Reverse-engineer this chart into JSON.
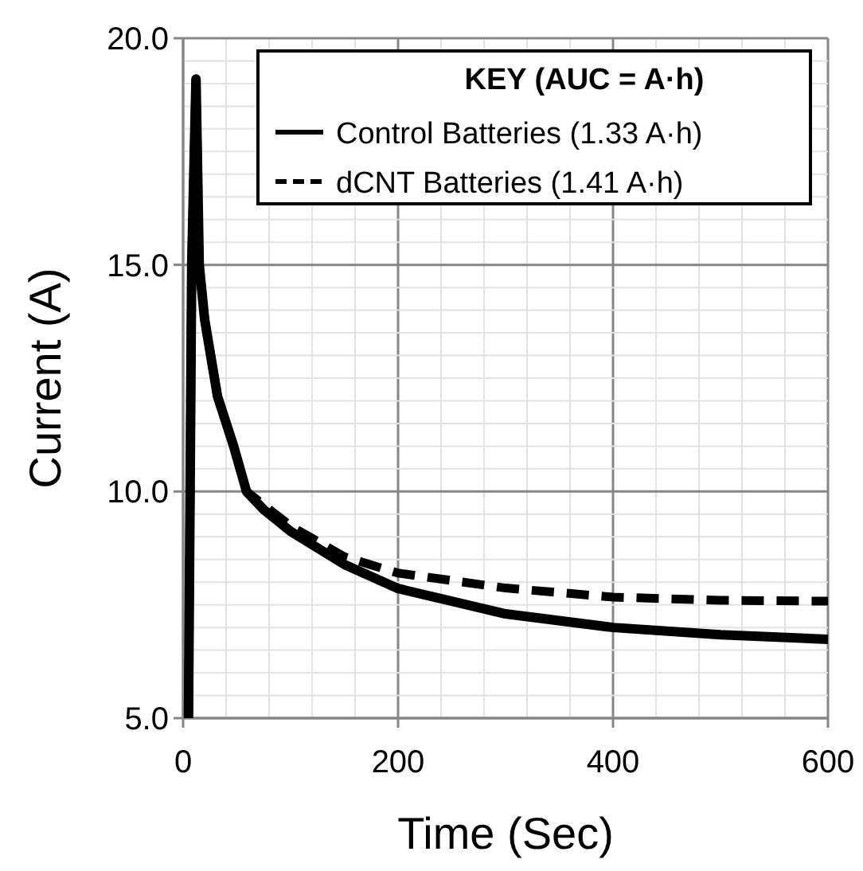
{
  "chart_data": {
    "type": "line",
    "xlabel": "Time (Sec)",
    "ylabel": "Current (A)",
    "legend_title": "KEY (AUC = A·h)",
    "xlim": [
      0,
      600
    ],
    "ylim": [
      5,
      20
    ],
    "xticks": [
      0,
      {
        "value": 40,
        "label": null
      },
      {
        "value": 80,
        "label": null
      },
      {
        "value": 120,
        "label": null
      },
      {
        "value": 160,
        "label": null
      },
      200,
      {
        "value": 240,
        "label": null
      },
      {
        "value": 280,
        "label": null
      },
      {
        "value": 320,
        "label": null
      },
      {
        "value": 360,
        "label": null
      },
      400,
      {
        "value": 440,
        "label": null
      },
      {
        "value": 480,
        "label": null
      },
      {
        "value": 520,
        "label": null
      },
      {
        "value": 560,
        "label": null
      },
      600
    ],
    "yticks": [
      {
        "value": 5,
        "label": "5.0"
      },
      {
        "value": 5.5,
        "label": null
      },
      {
        "value": 6,
        "label": null
      },
      {
        "value": 6.5,
        "label": null
      },
      {
        "value": 7,
        "label": null
      },
      {
        "value": 7.5,
        "label": null
      },
      {
        "value": 8,
        "label": null
      },
      {
        "value": 8.5,
        "label": null
      },
      {
        "value": 9,
        "label": null
      },
      {
        "value": 9.5,
        "label": null
      },
      {
        "value": 10,
        "label": "10.0"
      },
      {
        "value": 10.5,
        "label": null
      },
      {
        "value": 11,
        "label": null
      },
      {
        "value": 11.5,
        "label": null
      },
      {
        "value": 12,
        "label": null
      },
      {
        "value": 12.5,
        "label": null
      },
      {
        "value": 13,
        "label": null
      },
      {
        "value": 13.5,
        "label": null
      },
      {
        "value": 14,
        "label": null
      },
      {
        "value": 14.5,
        "label": null
      },
      {
        "value": 15,
        "label": "15.0"
      },
      {
        "value": 15.5,
        "label": null
      },
      {
        "value": 16,
        "label": null
      },
      {
        "value": 16.5,
        "label": null
      },
      {
        "value": 17,
        "label": null
      },
      {
        "value": 17.5,
        "label": null
      },
      {
        "value": 18,
        "label": null
      },
      {
        "value": 18.5,
        "label": null
      },
      {
        "value": 19,
        "label": null
      },
      {
        "value": 19.5,
        "label": null
      },
      {
        "value": 20,
        "label": "20.0"
      }
    ],
    "grid": true,
    "legend": "top right",
    "marker": "none",
    "series": [
      {
        "name": "Control Batteries (1.33 A·h)",
        "color": "#000000",
        "line_style": "solid",
        "x": [
          5,
          8,
          12,
          15,
          20,
          32,
          47,
          59,
          75,
          100,
          150,
          200,
          300,
          400,
          500,
          600
        ],
        "values": [
          5,
          15,
          19.1,
          15,
          13.8,
          12.1,
          11,
          10,
          9.6,
          9.12,
          8.39,
          7.86,
          7.3,
          7,
          6.84,
          6.74
        ]
      },
      {
        "name": "dCNT Batteries (1.41 A·h)",
        "color": "#000000",
        "line_style": "dashed",
        "x": [
          5,
          8,
          12,
          15,
          20,
          32,
          47,
          59,
          75,
          100,
          150,
          200,
          300,
          400,
          500,
          600
        ],
        "values": [
          5,
          15,
          19.1,
          15,
          13.8,
          12.1,
          11,
          10,
          9.7,
          9.24,
          8.56,
          8.2,
          7.87,
          7.67,
          7.6,
          7.58
        ]
      }
    ]
  }
}
